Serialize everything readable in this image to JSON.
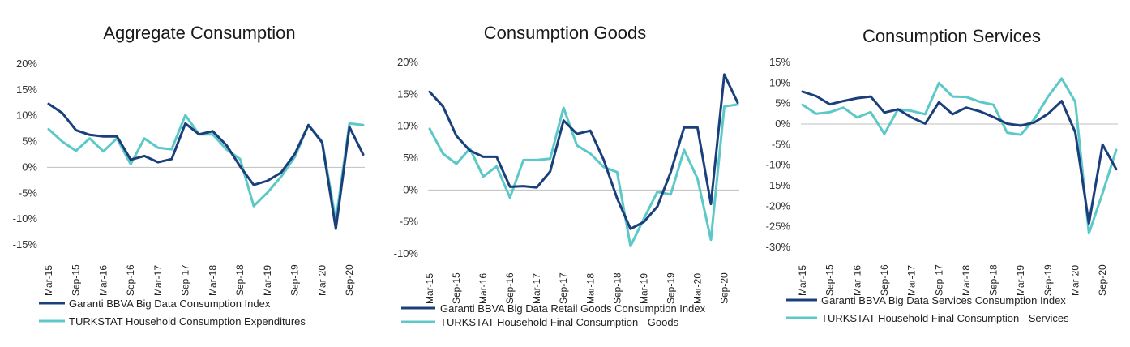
{
  "colors": {
    "series1": "#1a3f7a",
    "series2": "#5cc8c8",
    "axis": "#bfbfbf"
  },
  "chart_data": [
    {
      "type": "line",
      "title": "Aggregate Consumption",
      "ylim": [
        -15,
        20
      ],
      "ytick_values": [
        -15,
        -10,
        -5,
        0,
        5,
        10,
        15,
        20
      ],
      "ytick_labels": [
        "-15%",
        "-10%",
        "-5%",
        "0%",
        "5%",
        "10%",
        "15%",
        "20%"
      ],
      "xtick_labels": [
        "Mar-15",
        "Sep-15",
        "Mar-16",
        "Sep-16",
        "Mar-17",
        "Sep-17",
        "Mar-18",
        "Sep-18",
        "Mar-19",
        "Sep-19",
        "Mar-20",
        "Sep-20"
      ],
      "series": [
        {
          "name": "Garanti BBVA Big Data Consumption Index",
          "values": [
            12.3,
            10.5,
            7.2,
            6.3,
            6.0,
            6.0,
            1.5,
            2.2,
            1.0,
            1.6,
            8.5,
            6.4,
            7.0,
            4.3,
            0.2,
            -3.4,
            -2.6,
            -1.0,
            2.6,
            8.2,
            4.8,
            -11.9,
            7.8,
            2.5
          ]
        },
        {
          "name": "TURKSTAT Household Consumption Expenditures",
          "values": [
            7.4,
            5.0,
            3.2,
            5.6,
            3.1,
            5.6,
            0.6,
            5.6,
            3.8,
            3.5,
            10.1,
            6.4,
            6.4,
            3.5,
            1.6,
            -7.5,
            -4.9,
            -1.8,
            2.0,
            8.2,
            5.0,
            -10.3,
            8.5,
            8.2
          ]
        }
      ]
    },
    {
      "type": "line",
      "title": "Consumption Goods",
      "ylim": [
        -10,
        20
      ],
      "ytick_values": [
        -10,
        -5,
        0,
        5,
        10,
        15,
        20
      ],
      "ytick_labels": [
        "-10%",
        "-5%",
        "0%",
        "5%",
        "10%",
        "15%",
        "20%"
      ],
      "xtick_labels": [
        "Mar-15",
        "Sep-15",
        "Mar-16",
        "Sep-16",
        "Mar-17",
        "Sep-17",
        "Mar-18",
        "Sep-18",
        "Mar-19",
        "Sep-19",
        "Mar-20",
        "Sep-20"
      ],
      "series": [
        {
          "name": "Garanti BBVA Big Data Retail Goods Consumption Index",
          "values": [
            15.4,
            13.1,
            8.5,
            6.2,
            5.2,
            5.2,
            0.5,
            0.6,
            0.4,
            2.9,
            10.9,
            8.8,
            9.3,
            4.7,
            -1.3,
            -6.1,
            -5.0,
            -2.6,
            2.8,
            9.8,
            9.8,
            -2.2,
            18.1,
            13.7
          ]
        },
        {
          "name": "TURKSTAT Household Final Consumption - Goods",
          "values": [
            9.6,
            5.7,
            4.1,
            6.5,
            2.1,
            3.7,
            -1.2,
            4.7,
            4.7,
            4.9,
            12.9,
            7.0,
            5.7,
            3.6,
            2.8,
            -8.8,
            -4.5,
            -0.3,
            -0.7,
            6.3,
            1.8,
            -7.8,
            13.1,
            13.4
          ]
        }
      ]
    },
    {
      "type": "line",
      "title": "Consumption Services",
      "ylim": [
        -30,
        15
      ],
      "ytick_values": [
        -30,
        -25,
        -20,
        -15,
        -10,
        -5,
        0,
        5,
        10,
        15
      ],
      "ytick_labels": [
        "-30%",
        "-25%",
        "-20%",
        "-15%",
        "-10%",
        "-5%",
        "0%",
        "5%",
        "10%",
        "15%"
      ],
      "xtick_labels": [
        "Mar-15",
        "Sep-15",
        "Mar-16",
        "Sep-16",
        "Mar-17",
        "Sep-17",
        "Mar-18",
        "Sep-18",
        "Mar-19",
        "Sep-19",
        "Mar-20",
        "Sep-20"
      ],
      "series": [
        {
          "name": "Garanti BBVA Big Data Services Consumption Index",
          "values": [
            7.9,
            6.8,
            4.8,
            5.6,
            6.3,
            6.7,
            2.8,
            3.6,
            1.6,
            0.1,
            5.3,
            2.4,
            4.0,
            3.1,
            1.7,
            0.1,
            -0.4,
            0.4,
            2.5,
            5.6,
            -2.0,
            -24.2,
            -5.0,
            -11.0
          ]
        },
        {
          "name": "TURKSTAT Household Final Consumption - Services",
          "values": [
            4.7,
            2.5,
            2.9,
            4.0,
            1.6,
            2.9,
            -2.4,
            3.6,
            3.2,
            2.4,
            10.0,
            6.7,
            6.6,
            5.4,
            4.7,
            -2.1,
            -2.6,
            1.2,
            6.7,
            11.1,
            5.4,
            -26.6,
            -16.8,
            -6.3
          ]
        }
      ]
    }
  ]
}
